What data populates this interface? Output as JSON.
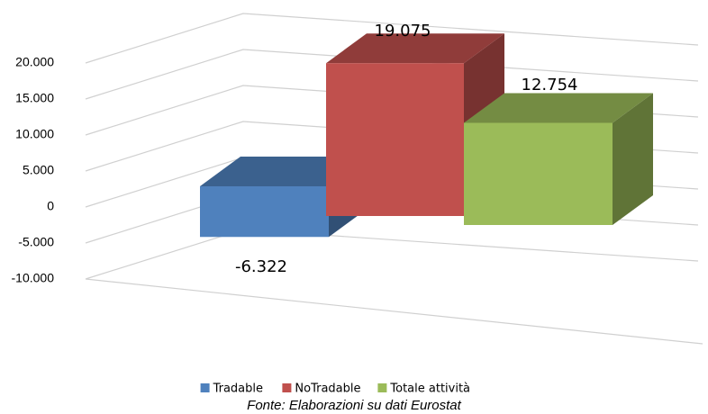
{
  "chart_data": {
    "type": "bar3d",
    "categories": [
      null
    ],
    "series": [
      {
        "name": "Tradable",
        "color": "#4f81bd",
        "values": [
          -6322
        ],
        "value_labels": [
          "-6.322"
        ]
      },
      {
        "name": "NoTradable",
        "color": "#c0504d",
        "values": [
          19075
        ],
        "value_labels": [
          "19.075"
        ]
      },
      {
        "name": "Totale attività",
        "color": "#9bbb59",
        "values": [
          12754
        ],
        "value_labels": [
          "12.754"
        ]
      }
    ],
    "ylim": [
      -10000,
      20000
    ],
    "yticks": [
      {
        "value": -10000,
        "label": "-10.000"
      },
      {
        "value": -5000,
        "label": "-5.000"
      },
      0,
      {
        "value": 5000,
        "label": "5.000"
      },
      {
        "value": 10000,
        "label": "10.000"
      },
      {
        "value": 15000,
        "label": "15.000"
      },
      {
        "value": 20000,
        "label": "20.000"
      }
    ],
    "grid": true,
    "legend": "bottom",
    "source": "Fonte: Elaborazioni su dati Eurostat"
  }
}
